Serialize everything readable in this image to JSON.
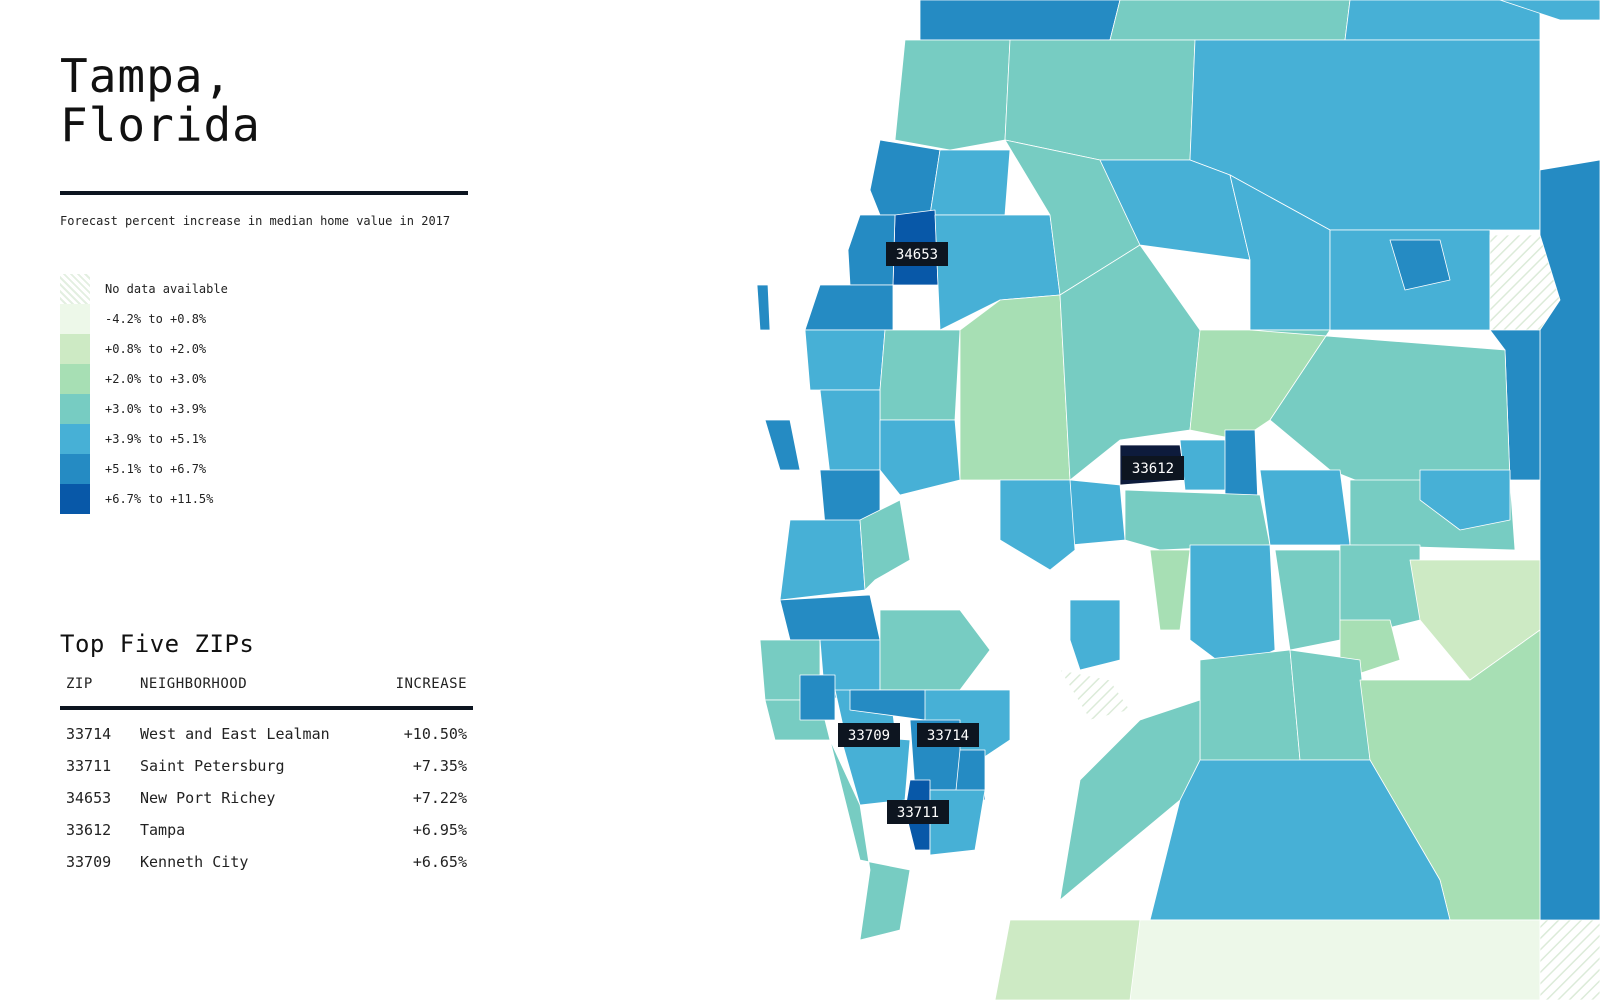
{
  "title": {
    "line1": "Tampa,",
    "line2": "Florida"
  },
  "subtitle": "Forecast percent increase in median home value in 2017",
  "legend": [
    {
      "label": "No data available",
      "color": "hatch"
    },
    {
      "label": "-4.2% to +0.8%",
      "color": "#edf8e9"
    },
    {
      "label": "+0.8% to +2.0%",
      "color": "#cdeac4"
    },
    {
      "label": "+2.0% to +3.0%",
      "color": "#a7dfb4"
    },
    {
      "label": "+3.0% to +3.9%",
      "color": "#77ccc2"
    },
    {
      "label": "+3.9% to +5.1%",
      "color": "#47b0d6"
    },
    {
      "label": "+5.1% to +6.7%",
      "color": "#258bc3"
    },
    {
      "label": "+6.7% to +11.5%",
      "color": "#0858a8"
    }
  ],
  "top_five": {
    "title": "Top Five ZIPs",
    "headers": {
      "zip": "ZIP",
      "neighborhood": "NEIGHBORHOOD",
      "increase": "INCREASE"
    },
    "rows": [
      {
        "zip": "33714",
        "neighborhood": "West and East Lealman",
        "increase": "+10.50%"
      },
      {
        "zip": "33711",
        "neighborhood": "Saint Petersburg",
        "increase": "+7.35%"
      },
      {
        "zip": "34653",
        "neighborhood": "New Port Richey",
        "increase": "+7.22%"
      },
      {
        "zip": "33612",
        "neighborhood": "Tampa",
        "increase": "+6.95%"
      },
      {
        "zip": "33709",
        "neighborhood": "Kenneth City",
        "increase": "+6.65%"
      }
    ]
  },
  "map_labels": [
    {
      "zip": "34653"
    },
    {
      "zip": "33612"
    },
    {
      "zip": "33709"
    },
    {
      "zip": "33714"
    },
    {
      "zip": "33711"
    }
  ],
  "colors": {
    "label_bg": "#0d1520",
    "boundary": "#ffffff"
  }
}
